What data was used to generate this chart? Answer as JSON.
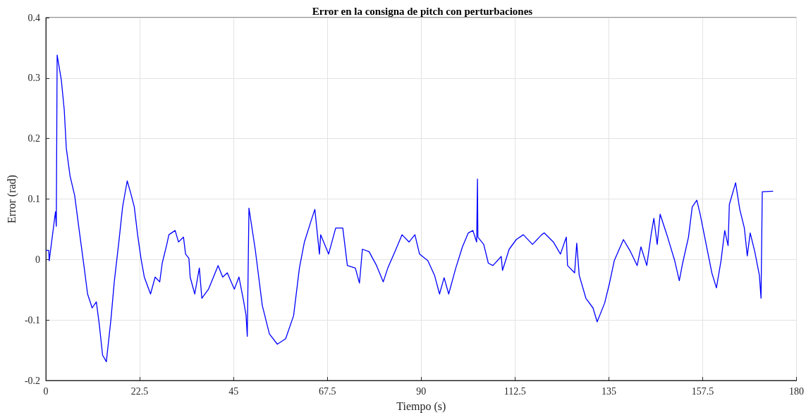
{
  "chart_data": {
    "type": "line",
    "title": "Error en la consigna de pitch con perturbaciones",
    "xlabel": "Tiempo (s)",
    "ylabel": "Error (rad)",
    "xlim": [
      0,
      180
    ],
    "ylim": [
      -0.2,
      0.4
    ],
    "xticks": [
      0,
      22.5,
      45,
      67.5,
      90,
      112.5,
      135,
      157.5,
      180
    ],
    "yticks": [
      -0.2,
      -0.1,
      0,
      0.1,
      0.2,
      0.3,
      0.4
    ],
    "grid": true,
    "series": [
      {
        "color": "#0000ff",
        "x": [
          0,
          0.7,
          0.8,
          2.3,
          2.5,
          2.7,
          3.7,
          4.4,
          4.9,
          5.8,
          6.9,
          8.0,
          9.2,
          10.0,
          11.1,
          12.1,
          12.8,
          13.6,
          14.5,
          15.6,
          16.4,
          17.5,
          18.4,
          19.5,
          20.3,
          21.2,
          22.0,
          22.8,
          23.6,
          25.1,
          26.2,
          27.3,
          27.9,
          29.0,
          29.5,
          31.0,
          31.8,
          33.0,
          33.5,
          34.3,
          34.6,
          35.7,
          36.8,
          37.4,
          39.0,
          41.3,
          42.4,
          43.5,
          45.2,
          46.3,
          47.4,
          48.0,
          48.3,
          48.7,
          50.2,
          51.9,
          53.6,
          55.5,
          57.5,
          59.4,
          60.8,
          62.0,
          63.6,
          64.5,
          65.6,
          65.9,
          67.8,
          69.5,
          71.2,
          72.3,
          74.2,
          75.2,
          75.9,
          77.5,
          79.3,
          80.9,
          82.0,
          83.7,
          85.4,
          87.1,
          88.5,
          89.6,
          91.6,
          93.2,
          94.4,
          95.5,
          96.6,
          98.3,
          99.9,
          101.3,
          102.4,
          103.3,
          103.5,
          103.6,
          105.0,
          106.1,
          107.2,
          109.2,
          109.5,
          111.1,
          112.8,
          114.5,
          116.7,
          118.9,
          119.5,
          121.7,
          123.4,
          124.8,
          125.1,
          126.8,
          127.3,
          127.9,
          129.5,
          131.2,
          132.2,
          134.0,
          135.1,
          136.3,
          138.5,
          140.2,
          141.8,
          142.7,
          144.1,
          145.2,
          145.8,
          146.6,
          147.3,
          149.1,
          150.8,
          151.9,
          152.7,
          154.1,
          155.0,
          156.1,
          156.9,
          158.0,
          159.7,
          160.8,
          161.9,
          162.8,
          163.6,
          163.9,
          165.4,
          166.4,
          167.5,
          168.2,
          168.9,
          170.0,
          171.1,
          171.5,
          171.8,
          174.4
        ],
        "values": [
          0.015,
          0.015,
          -0.002,
          0.079,
          0.055,
          0.338,
          0.297,
          0.248,
          0.184,
          0.138,
          0.106,
          0.048,
          -0.014,
          -0.057,
          -0.08,
          -0.07,
          -0.107,
          -0.158,
          -0.169,
          -0.099,
          -0.037,
          0.029,
          0.087,
          0.13,
          0.111,
          0.087,
          0.041,
          0.002,
          -0.029,
          -0.057,
          -0.029,
          -0.037,
          -0.006,
          0.025,
          0.041,
          0.048,
          0.029,
          0.037,
          0.009,
          0.002,
          -0.029,
          -0.057,
          -0.014,
          -0.064,
          -0.049,
          -0.01,
          -0.029,
          -0.022,
          -0.049,
          -0.029,
          -0.068,
          -0.092,
          -0.127,
          0.085,
          0.017,
          -0.076,
          -0.123,
          -0.14,
          -0.131,
          -0.093,
          -0.014,
          0.029,
          0.064,
          0.083,
          0.009,
          0.041,
          0.009,
          0.052,
          0.052,
          -0.01,
          -0.014,
          -0.039,
          0.017,
          0.013,
          -0.01,
          -0.037,
          -0.014,
          0.013,
          0.041,
          0.029,
          0.041,
          0.009,
          -0.002,
          -0.026,
          -0.057,
          -0.03,
          -0.057,
          -0.014,
          0.021,
          0.044,
          0.048,
          0.029,
          0.133,
          0.037,
          0.025,
          -0.006,
          -0.01,
          0.005,
          -0.018,
          0.017,
          0.033,
          0.041,
          0.025,
          0.041,
          0.044,
          0.029,
          0.009,
          0.037,
          -0.01,
          -0.022,
          0.027,
          -0.026,
          -0.064,
          -0.08,
          -0.103,
          -0.072,
          -0.041,
          -0.002,
          0.033,
          0.013,
          -0.01,
          0.021,
          -0.01,
          0.044,
          0.068,
          0.025,
          0.075,
          0.037,
          -0.002,
          -0.035,
          -0.006,
          0.037,
          0.087,
          0.098,
          0.075,
          0.037,
          -0.022,
          -0.047,
          -0.002,
          0.048,
          0.023,
          0.091,
          0.127,
          0.083,
          0.052,
          0.006,
          0.044,
          0.013,
          -0.026,
          -0.064,
          0.112,
          0.113
        ]
      }
    ]
  }
}
